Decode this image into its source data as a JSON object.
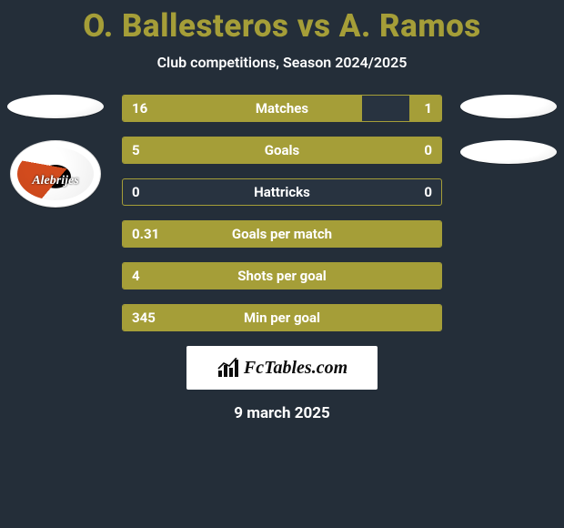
{
  "colors": {
    "background": "#242e39",
    "accent": "#a59e38",
    "bar_track": "#283340",
    "text": "#ffffff",
    "watermark_bg": "#ffffff",
    "watermark_text": "#0d0d0d"
  },
  "title_fontsize": 35,
  "subtitle_fontsize": 16,
  "bar_label_fontsize": 15,
  "title": "O. Ballesteros vs A. Ramos",
  "subtitle": "Club competitions, Season 2024/2025",
  "date": "9 march 2025",
  "watermark": "FcTables.com",
  "logos": {
    "left": [
      {
        "kind": "ellipse"
      },
      {
        "kind": "shield",
        "label": "Alebrijes"
      }
    ],
    "right": [
      {
        "kind": "ellipse"
      },
      {
        "kind": "ellipse"
      }
    ]
  },
  "stats": [
    {
      "label": "Matches",
      "left_text": "16",
      "right_text": "1",
      "left_pct": 75,
      "right_pct": 10
    },
    {
      "label": "Goals",
      "left_text": "5",
      "right_text": "0",
      "left_pct": 100,
      "right_pct": 0
    },
    {
      "label": "Hattricks",
      "left_text": "0",
      "right_text": "0",
      "left_pct": 0,
      "right_pct": 0
    },
    {
      "label": "Goals per match",
      "left_text": "0.31",
      "right_text": "",
      "left_pct": 100,
      "right_pct": 0
    },
    {
      "label": "Shots per goal",
      "left_text": "4",
      "right_text": "",
      "left_pct": 100,
      "right_pct": 0
    },
    {
      "label": "Min per goal",
      "left_text": "345",
      "right_text": "",
      "left_pct": 100,
      "right_pct": 0
    }
  ]
}
